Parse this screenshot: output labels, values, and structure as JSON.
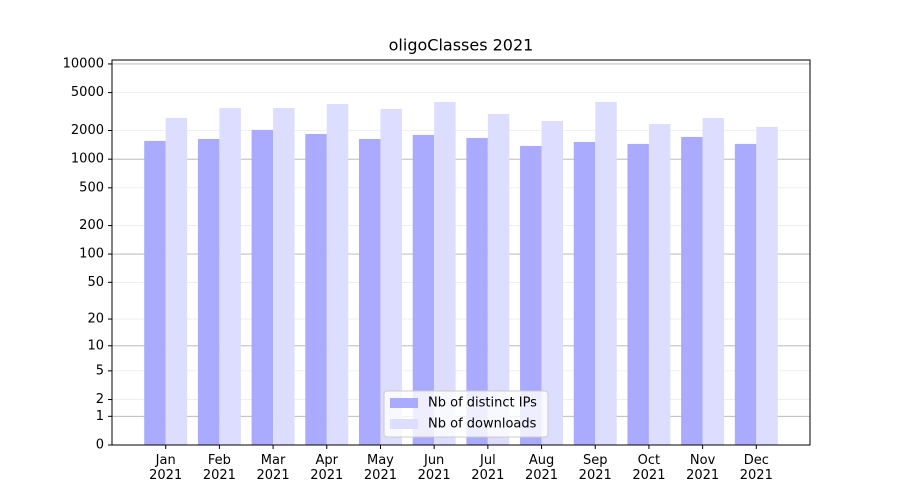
{
  "chart_data": {
    "type": "bar",
    "title": "oligoClasses 2021",
    "categories": [
      "Jan\n2021",
      "Feb\n2021",
      "Mar\n2021",
      "Apr\n2021",
      "May\n2021",
      "Jun\n2021",
      "Jul\n2021",
      "Aug\n2021",
      "Sep\n2021",
      "Oct\n2021",
      "Nov\n2021",
      "Dec\n2021"
    ],
    "series": [
      {
        "name": "Nb of distinct IPs",
        "color": "#aaaaff",
        "values": [
          1555,
          1630,
          2030,
          1840,
          1630,
          1797,
          1670,
          1377,
          1517,
          1446,
          1713,
          1446
        ]
      },
      {
        "name": "Nb of downloads",
        "color": "#ddddff",
        "values": [
          2710,
          3450,
          3450,
          3800,
          3370,
          3990,
          2985,
          2520,
          3990,
          2345,
          2710,
          2180
        ]
      }
    ],
    "yscale": "log1p",
    "ylim": [
      0,
      11000
    ],
    "yticks": [
      0,
      1,
      2,
      5,
      10,
      20,
      50,
      100,
      200,
      500,
      1000,
      2000,
      5000,
      10000
    ],
    "grid": true,
    "legend": "lower center"
  }
}
